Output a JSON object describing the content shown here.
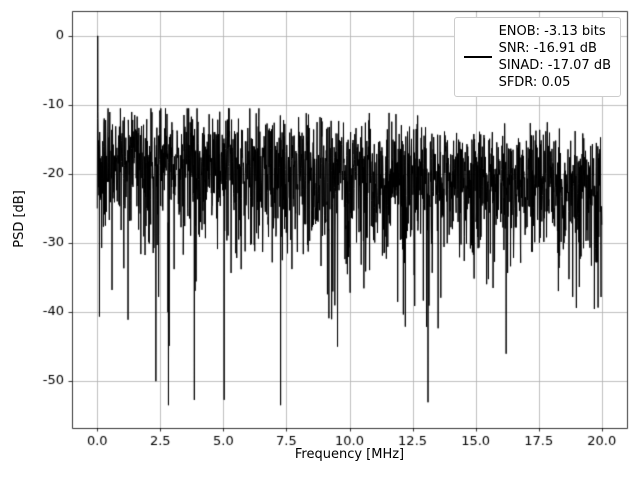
{
  "chart_data": {
    "type": "line",
    "title": "",
    "xlabel": "Frequency [MHz]",
    "ylabel": "PSD [dB]",
    "xlim": [
      -1.0,
      21.0
    ],
    "ylim": [
      -56.8,
      3.6
    ],
    "xticks": [
      0.0,
      2.5,
      5.0,
      7.5,
      10.0,
      12.5,
      15.0,
      17.5,
      20.0
    ],
    "xtick_labels": [
      "0.0",
      "2.5",
      "5.0",
      "7.5",
      "10.0",
      "12.5",
      "15.0",
      "17.5",
      "20.0"
    ],
    "yticks": [
      -50,
      -40,
      -30,
      -20,
      -10,
      0
    ],
    "ytick_labels": [
      "-50",
      "-40",
      "-30",
      "-20",
      "-10",
      "0"
    ],
    "grid": true,
    "grid_color": "#b0b0b0",
    "line_color": "#000000",
    "background_color": "#ffffff",
    "spine_color": "#000000",
    "legend": {
      "position": "upper right",
      "handle_color": "#000000",
      "entries": [
        "ENOB: -3.13 bits",
        "SNR: -16.91 dB",
        "SINAD: -17.07 dB",
        "SFDR: 0.05"
      ]
    },
    "signal": {
      "description": "FFT power spectral density: sharp peak reaching 0 dB near 0 MHz, dense noise floor across 0-20 MHz with mean sloping from about -18 dB down to -22 dB, upper envelope about -11 to -15 dB, and sporadic deep notches down to about -53 dB",
      "peak_frequency_mhz": 0.04,
      "peak_db": 0.0,
      "freq_start_mhz": 0.0,
      "freq_end_mhz": 20.0,
      "noise_mean_start_db": -16.5,
      "noise_mean_end_db": -20.5,
      "noise_max_db": -10.5,
      "noise_min_db": -53.5,
      "n_points": 2048,
      "seed": 42,
      "metrics": {
        "enob_bits": -3.13,
        "snr_db": -16.91,
        "sinad_db": -17.07,
        "sfdr": 0.05
      }
    }
  }
}
